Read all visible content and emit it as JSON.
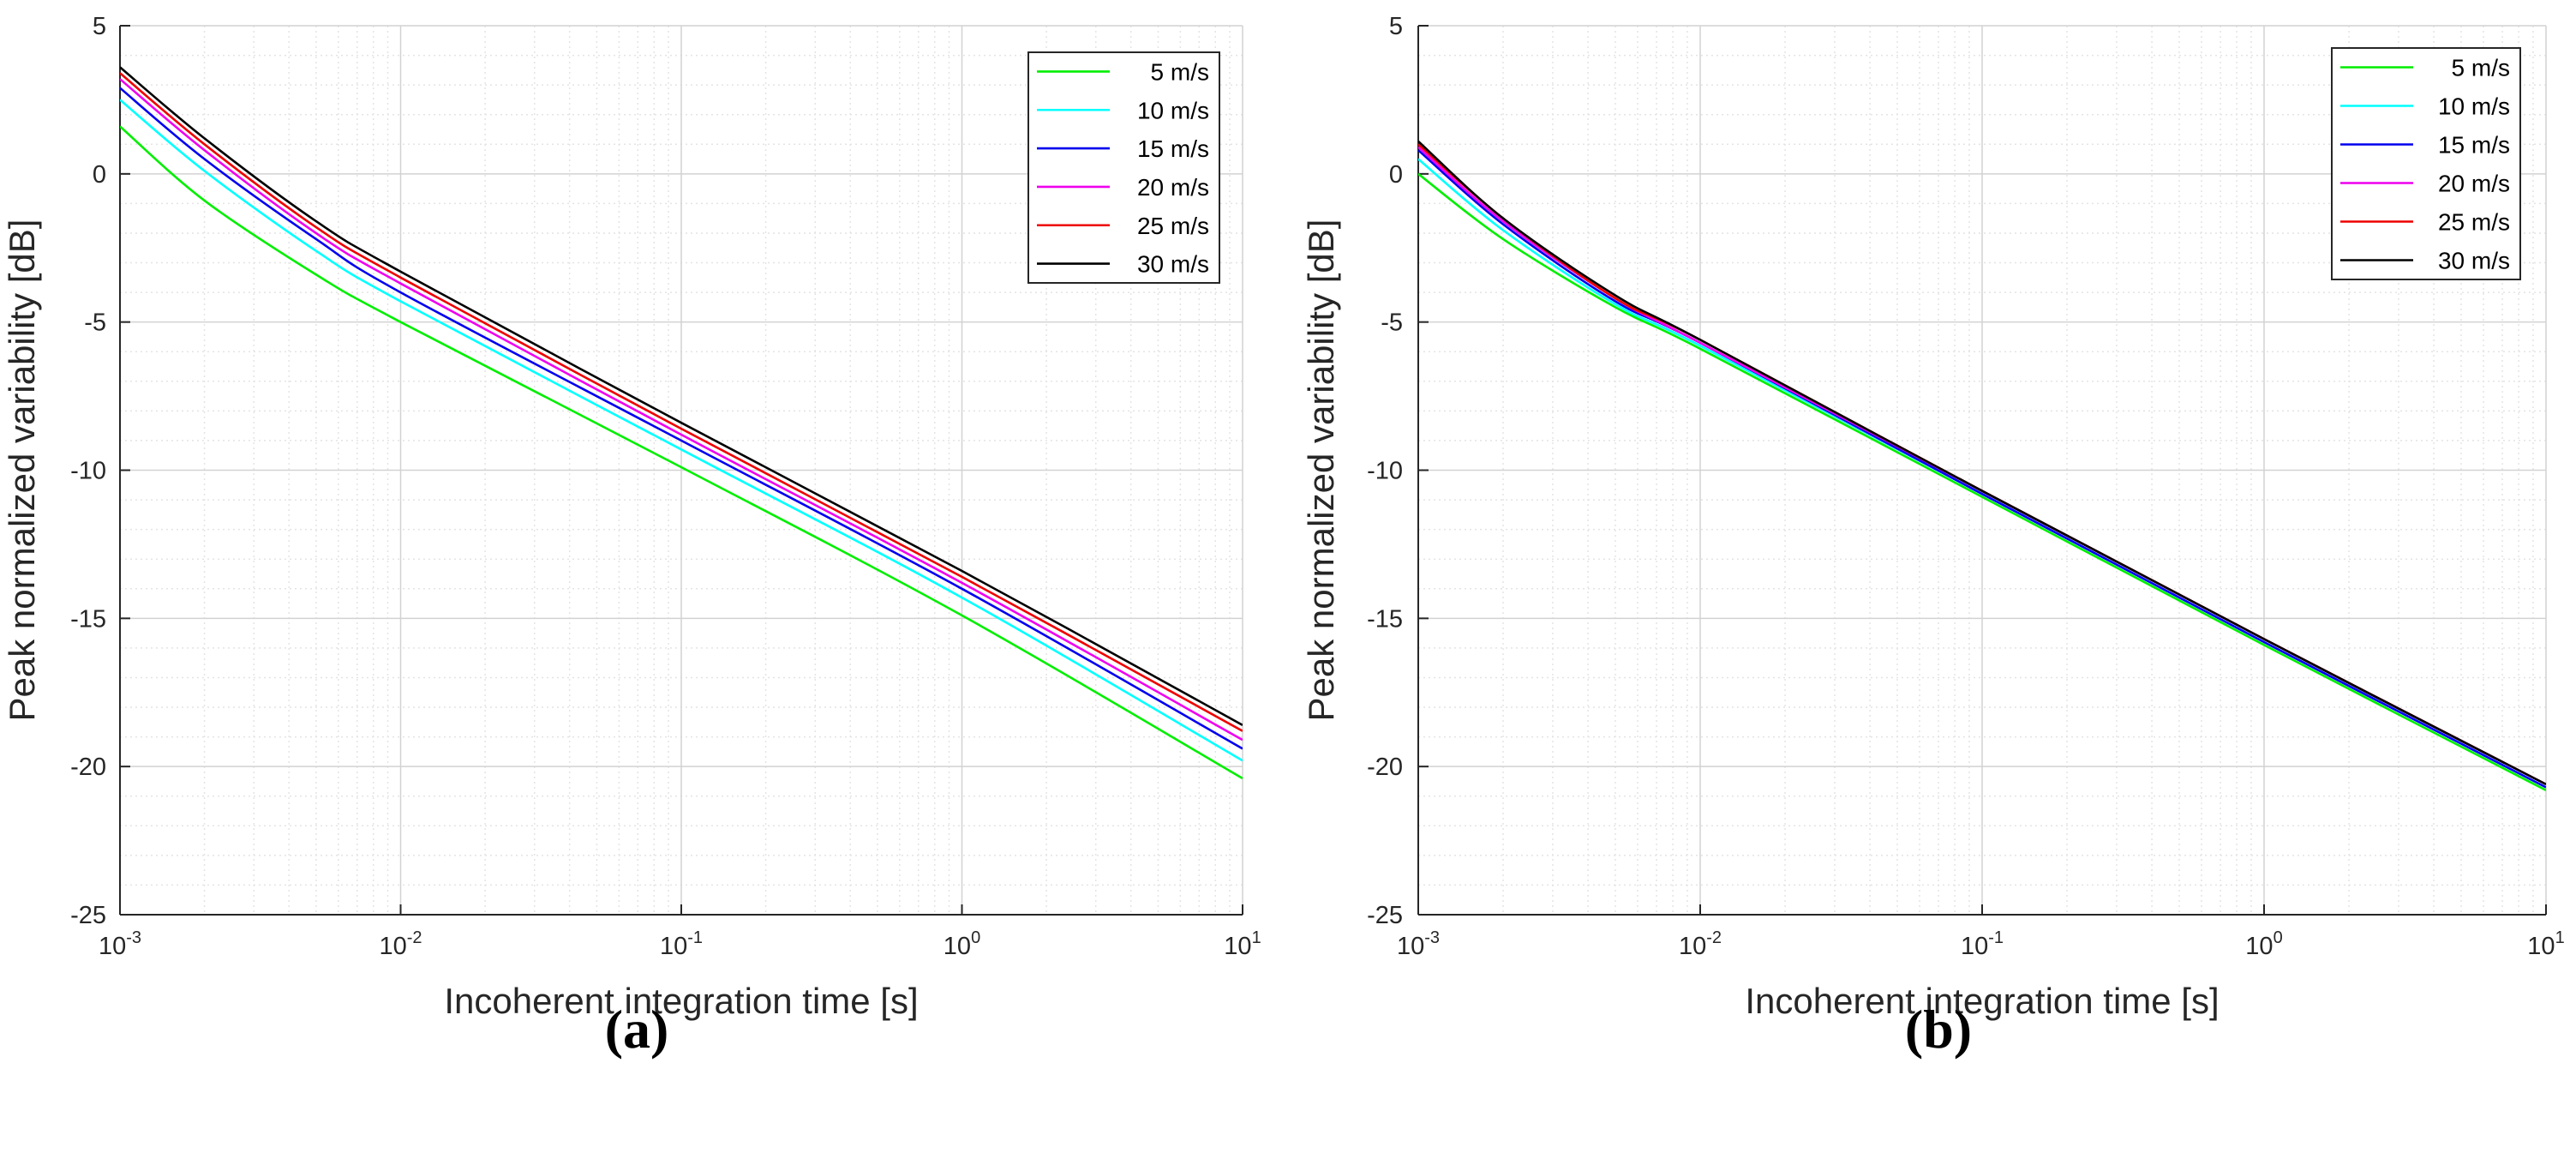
{
  "figure": {
    "panels": [
      {
        "label_open": "(",
        "label_letter": "a",
        "label_close": ")"
      },
      {
        "label_open": "(",
        "label_letter": "b",
        "label_close": ")"
      }
    ]
  },
  "chart_data": [
    {
      "type": "line",
      "title": "",
      "panel": "(a)",
      "xlabel": "Incoherent integration time [s]",
      "ylabel": "Peak normalized variability [dB]",
      "xscale": "log",
      "xlim": [
        0.001,
        10
      ],
      "ylim": [
        -25,
        5
      ],
      "grid": true,
      "minor_grid": true,
      "legend_position": "top-right",
      "x_ticks": [
        {
          "base": "10",
          "exp": "-3",
          "value": 0.001
        },
        {
          "base": "10",
          "exp": "-2",
          "value": 0.01
        },
        {
          "base": "10",
          "exp": "-1",
          "value": 0.1
        },
        {
          "base": "10",
          "exp": "0",
          "value": 1
        },
        {
          "base": "10",
          "exp": "1",
          "value": 10
        }
      ],
      "y_ticks": [
        {
          "label": "5",
          "value": 5
        },
        {
          "label": "0",
          "value": 0
        },
        {
          "label": "-5",
          "value": -5
        },
        {
          "label": "-10",
          "value": -10
        },
        {
          "label": "-15",
          "value": -15
        },
        {
          "label": "-20",
          "value": -20
        },
        {
          "label": "-25",
          "value": -25
        }
      ],
      "x": [
        0.001,
        0.002,
        0.005,
        0.01,
        0.1,
        1,
        10
      ],
      "series": [
        {
          "name": "5 m/s",
          "color": "#00ee00",
          "values": [
            1.6,
            -0.9,
            -3.4,
            -5.0,
            -9.9,
            -14.9,
            -20.4
          ]
        },
        {
          "name": "10 m/s",
          "color": "#00ffff",
          "values": [
            2.5,
            0.1,
            -2.6,
            -4.3,
            -9.3,
            -14.3,
            -19.8
          ]
        },
        {
          "name": "15 m/s",
          "color": "#0000ee",
          "values": [
            2.9,
            0.5,
            -2.2,
            -4.0,
            -9.0,
            -14.0,
            -19.4
          ]
        },
        {
          "name": "20 m/s",
          "color": "#ee00ee",
          "values": [
            3.2,
            0.8,
            -2.0,
            -3.7,
            -8.8,
            -13.8,
            -19.1
          ]
        },
        {
          "name": "25 m/s",
          "color": "#ee0000",
          "values": [
            3.4,
            1.0,
            -1.8,
            -3.5,
            -8.6,
            -13.6,
            -18.8
          ]
        },
        {
          "name": "30 m/s",
          "color": "#000000",
          "values": [
            3.6,
            1.2,
            -1.6,
            -3.3,
            -8.4,
            -13.4,
            -18.6
          ]
        }
      ]
    },
    {
      "type": "line",
      "title": "",
      "panel": "(b)",
      "xlabel": "Incoherent integration time [s]",
      "ylabel": "Peak normalized variability [dB]",
      "xscale": "log",
      "xlim": [
        0.001,
        10
      ],
      "ylim": [
        -25,
        5
      ],
      "grid": true,
      "minor_grid": true,
      "legend_position": "top-right",
      "x_ticks": [
        {
          "base": "10",
          "exp": "-3",
          "value": 0.001
        },
        {
          "base": "10",
          "exp": "-2",
          "value": 0.01
        },
        {
          "base": "10",
          "exp": "-1",
          "value": 0.1
        },
        {
          "base": "10",
          "exp": "0",
          "value": 1
        },
        {
          "base": "10",
          "exp": "1",
          "value": 10
        }
      ],
      "y_ticks": [
        {
          "label": "5",
          "value": 5
        },
        {
          "label": "0",
          "value": 0
        },
        {
          "label": "-5",
          "value": -5
        },
        {
          "label": "-10",
          "value": -10
        },
        {
          "label": "-15",
          "value": -15
        },
        {
          "label": "-20",
          "value": -20
        },
        {
          "label": "-25",
          "value": -25
        }
      ],
      "x": [
        0.001,
        0.002,
        0.005,
        0.01,
        0.1,
        1,
        10
      ],
      "series": [
        {
          "name": "5 m/s",
          "color": "#00ee00",
          "values": [
            0.0,
            -2.2,
            -4.5,
            -5.9,
            -10.9,
            -15.9,
            -20.8
          ]
        },
        {
          "name": "10 m/s",
          "color": "#00ffff",
          "values": [
            0.5,
            -1.9,
            -4.4,
            -5.8,
            -10.8,
            -15.8,
            -20.7
          ]
        },
        {
          "name": "15 m/s",
          "color": "#0000ee",
          "values": [
            0.8,
            -1.7,
            -4.3,
            -5.7,
            -10.8,
            -15.8,
            -20.7
          ]
        },
        {
          "name": "20 m/s",
          "color": "#ee00ee",
          "values": [
            0.9,
            -1.6,
            -4.2,
            -5.7,
            -10.7,
            -15.7,
            -20.6
          ]
        },
        {
          "name": "25 m/s",
          "color": "#ee0000",
          "values": [
            1.0,
            -1.5,
            -4.2,
            -5.6,
            -10.7,
            -15.7,
            -20.6
          ]
        },
        {
          "name": "30 m/s",
          "color": "#000000",
          "values": [
            1.1,
            -1.5,
            -4.1,
            -5.6,
            -10.7,
            -15.7,
            -20.6
          ]
        }
      ]
    }
  ]
}
